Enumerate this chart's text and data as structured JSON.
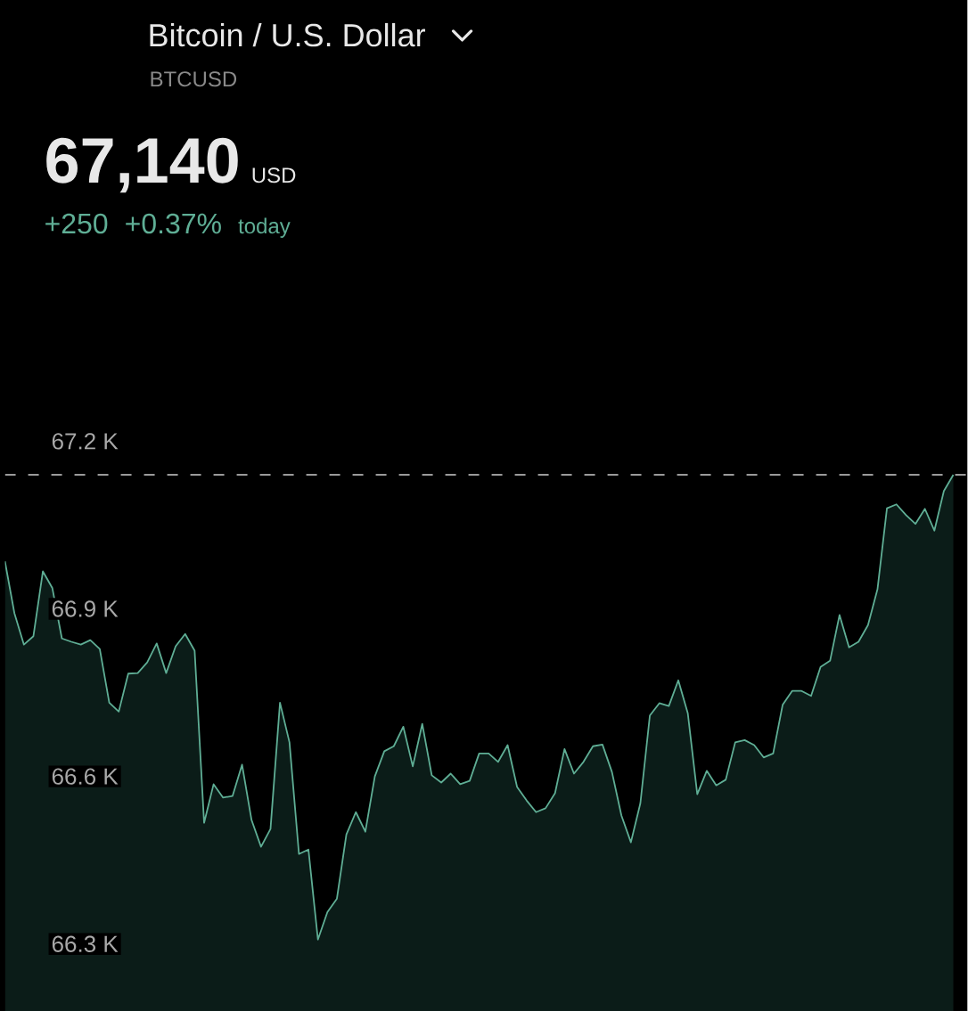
{
  "chart_data": {
    "type": "area",
    "title": "Bitcoin / U.S. Dollar",
    "subtitle": "BTCUSD",
    "annotations": [
      "67,140",
      "USD",
      "+250",
      "+0.37%",
      "today"
    ],
    "categories": [
      null,
      null,
      null,
      null,
      null,
      null,
      null,
      null,
      null,
      null,
      null,
      null,
      null,
      null,
      null,
      null,
      null,
      null,
      null,
      null,
      null,
      null,
      null,
      null,
      null,
      null,
      null,
      null,
      null,
      null,
      null,
      null,
      null,
      null,
      null,
      null,
      null,
      null,
      null,
      null,
      null,
      null,
      null,
      null,
      null,
      null,
      null,
      null,
      null,
      null,
      null,
      null,
      null,
      null,
      null,
      null,
      null,
      null,
      null,
      null,
      null,
      null,
      null,
      null,
      null,
      null,
      null,
      null,
      null,
      null,
      null,
      null,
      null,
      null,
      null,
      null,
      null,
      null,
      null,
      null,
      null,
      null,
      null,
      null,
      null,
      null,
      null,
      null,
      null,
      null,
      null,
      null,
      null,
      null,
      null,
      null,
      null,
      null,
      null,
      null,
      null
    ],
    "color": "#5fae95",
    "values": [
      66.985,
      66.892,
      66.836,
      66.851,
      66.967,
      66.937,
      66.847,
      66.841,
      66.836,
      66.844,
      66.828,
      66.732,
      66.716,
      66.784,
      66.785,
      66.804,
      66.838,
      66.785,
      66.833,
      66.855,
      66.825,
      66.517,
      66.586,
      66.562,
      66.565,
      66.621,
      66.522,
      66.474,
      66.506,
      66.732,
      66.661,
      66.461,
      66.469,
      66.308,
      66.357,
      66.381,
      66.496,
      66.536,
      66.501,
      66.6,
      66.645,
      66.654,
      66.689,
      66.618,
      66.694,
      66.602,
      66.589,
      66.605,
      66.586,
      66.592,
      66.641,
      66.641,
      66.626,
      66.656,
      66.581,
      66.557,
      66.536,
      66.543,
      66.57,
      66.649,
      66.605,
      66.626,
      66.654,
      66.657,
      66.608,
      66.53,
      66.482,
      66.552,
      66.709,
      66.731,
      66.726,
      66.772,
      66.713,
      66.568,
      66.61,
      66.584,
      66.594,
      66.661,
      66.665,
      66.656,
      66.634,
      66.641,
      66.728,
      66.753,
      66.753,
      66.744,
      66.796,
      66.807,
      66.889,
      66.831,
      66.841,
      66.871,
      66.935,
      67.08,
      67.087,
      67.068,
      67.052,
      67.079,
      67.04,
      67.111,
      67.14
    ],
    "ylim": [
      66.18,
      67.99
    ],
    "yticks": [
      {
        "value": 66.3,
        "label": "66.3 K"
      },
      {
        "value": 66.6,
        "label": "66.6 K"
      },
      {
        "value": 66.9,
        "label": "66.9 K"
      },
      {
        "value": 67.2,
        "label": "67.2 K"
      }
    ],
    "ref_lines": [
      {
        "axis": "y",
        "value": 67.14,
        "color": "#9a9a9a",
        "line_style": "dashed"
      }
    ]
  }
}
